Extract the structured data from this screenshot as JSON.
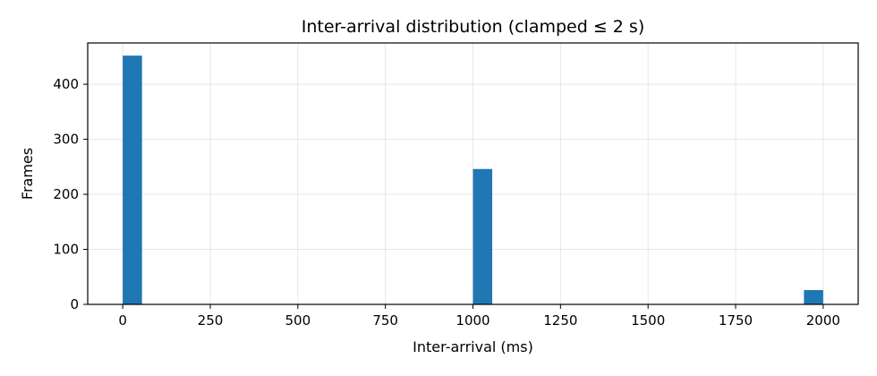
{
  "chart_data": {
    "type": "bar",
    "title": "Inter-arrival distribution (clamped ≤ 2 s)",
    "xlabel": "Inter-arrival (ms)",
    "ylabel": "Frames",
    "xlim": [
      -100,
      2100
    ],
    "ylim": [
      0,
      475
    ],
    "xticks": [
      0,
      250,
      500,
      750,
      1000,
      1250,
      1500,
      1750,
      2000
    ],
    "yticks": [
      0,
      100,
      200,
      300,
      400
    ],
    "grid": true,
    "bar_color": "#1f77b4",
    "bins": [
      {
        "x_start": 0,
        "x_end": 55,
        "count": 452
      },
      {
        "x_start": 1000,
        "x_end": 1055,
        "count": 246
      },
      {
        "x_start": 1945,
        "x_end": 2000,
        "count": 26
      }
    ]
  }
}
